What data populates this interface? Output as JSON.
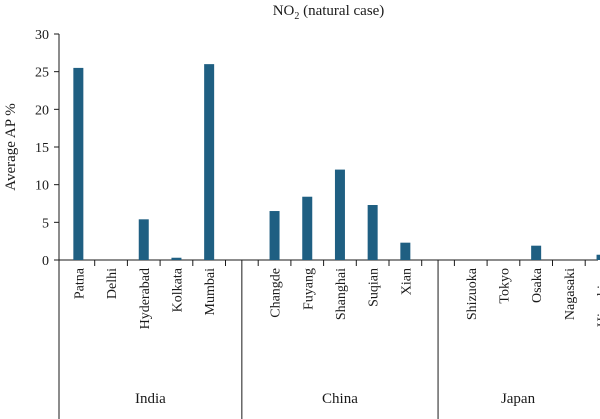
{
  "chart_data": {
    "type": "bar",
    "title": "NO₂ (natural case)",
    "ylabel": "Average AP %",
    "xlabel": "",
    "ylim": [
      0,
      30
    ],
    "yticks": [
      0,
      5,
      10,
      15,
      20,
      25,
      30
    ],
    "grid": false,
    "bar_color": "#1f5f82",
    "groups": [
      {
        "name": "India",
        "categories": [
          "Patna",
          "Delhi",
          "Hyderabad",
          "Kolkata",
          "Mumbai"
        ],
        "values": [
          25.5,
          0,
          5.4,
          0.3,
          26
        ]
      },
      {
        "name": "China",
        "categories": [
          "Changde",
          "Fuyang",
          "Shanghai",
          "Suqian",
          "Xian"
        ],
        "values": [
          6.5,
          8.4,
          12,
          7.3,
          2.3
        ]
      },
      {
        "name": "Japan",
        "categories": [
          "Shizuoka",
          "Tokyo",
          "Osaka",
          "Nagasaki",
          "Hiroshima"
        ],
        "values": [
          0,
          0,
          1.9,
          0,
          0.7
        ]
      }
    ]
  }
}
